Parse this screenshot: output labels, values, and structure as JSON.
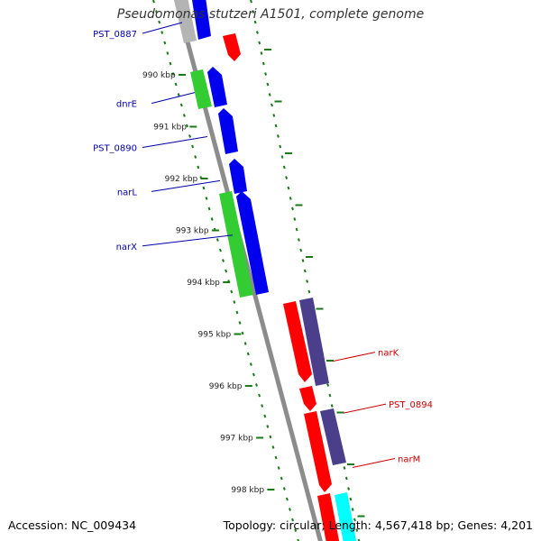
{
  "title": "Pseudomonas stutzeri A1501, complete genome",
  "footer": {
    "accession": "Accession: NC_009434",
    "summary": "Topology: circular; Length: 4,567,418 bp; Genes: 4,201"
  },
  "colors": {
    "backbone": "#8c8c8c",
    "tick": "#1a7a1a",
    "forward_cds": "#0000ee",
    "forward_rna": "#33cc33",
    "reverse_cds": "#ff0000",
    "reverse_other": "#4b3f8c",
    "reverse_cyan": "#00ffff",
    "grey_feature": "#b4b4b4",
    "forward_label": "#0000aa",
    "reverse_label": "#cc0000"
  },
  "kbp_markers": [
    {
      "label": "990 kbp",
      "kbp": 990
    },
    {
      "label": "991 kbp",
      "kbp": 991
    },
    {
      "label": "992 kbp",
      "kbp": 992
    },
    {
      "label": "993 kbp",
      "kbp": 993
    },
    {
      "label": "994 kbp",
      "kbp": 994
    },
    {
      "label": "995 kbp",
      "kbp": 995
    },
    {
      "label": "996 kbp",
      "kbp": 996
    },
    {
      "label": "997 kbp",
      "kbp": 997
    },
    {
      "label": "998 kbp",
      "kbp": 998
    }
  ],
  "forward_labels": [
    {
      "text": "PST_0887",
      "kbp": 989.2
    },
    {
      "text": "dnrE",
      "kbp": 990.55
    },
    {
      "text": "PST_0890",
      "kbp": 991.4
    },
    {
      "text": "narL",
      "kbp": 992.25
    },
    {
      "text": "narX",
      "kbp": 993.3
    }
  ],
  "reverse_labels": [
    {
      "text": "narK",
      "kbp": 995.35
    },
    {
      "text": "PST_0894",
      "kbp": 996.35
    },
    {
      "text": "narM",
      "kbp": 997.4
    }
  ]
}
